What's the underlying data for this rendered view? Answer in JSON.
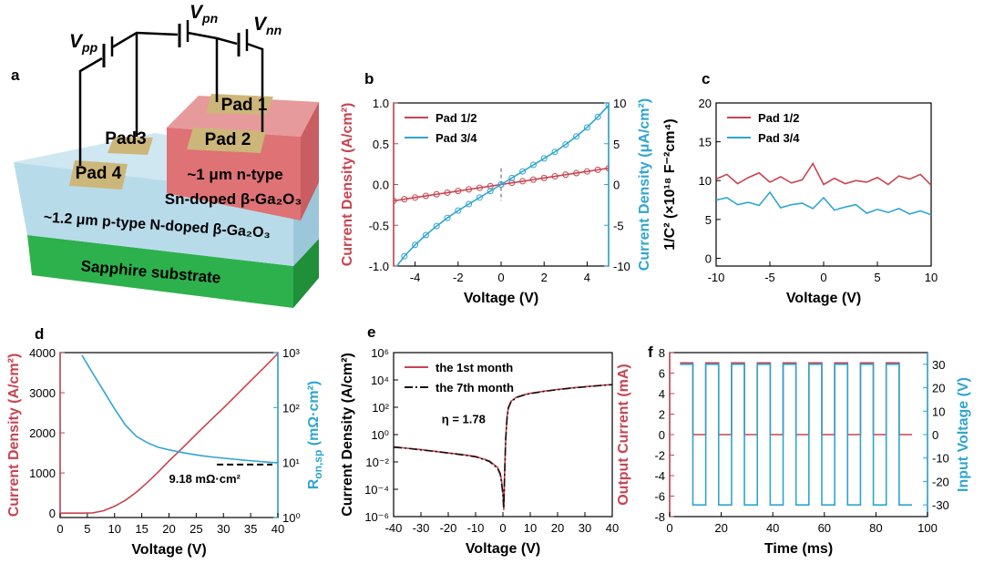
{
  "diagram": {
    "panel_label": "a",
    "vpp": [
      "V",
      "pp"
    ],
    "vpn": [
      "V",
      "pn"
    ],
    "vnn": [
      "V",
      "nn"
    ],
    "pads": [
      "Pad 1",
      "Pad 2",
      "Pad3",
      "Pad 4"
    ],
    "n_layer": [
      "~1 μm n-type",
      "Sn-doped β-Ga₂O₃"
    ],
    "p_layer": "~1.2 μm p-type N-doped β-Ga₂O₃",
    "substrate": "Sapphire substrate"
  },
  "chart_data": [
    {
      "type": "line",
      "panel_label": "b",
      "xlabel": "Voltage (V)",
      "ylabel": "Current Density (A/cm²)",
      "y2label": "Current Density (μA/cm²)",
      "x": [
        -5,
        -4.5,
        -4,
        -3.5,
        -3,
        -2.5,
        -2,
        -1.5,
        -1,
        -0.5,
        0,
        0.5,
        1,
        1.5,
        2,
        2.5,
        3,
        3.5,
        4,
        4.5,
        5
      ],
      "series": [
        {
          "name": "Pad 1/2",
          "color": "#c8434f",
          "marker": "circle",
          "values": [
            -0.2,
            -0.18,
            -0.16,
            -0.14,
            -0.12,
            -0.1,
            -0.08,
            -0.06,
            -0.04,
            -0.02,
            0,
            0.02,
            0.04,
            0.06,
            0.08,
            0.1,
            0.12,
            0.14,
            0.16,
            0.18,
            0.2
          ]
        },
        {
          "name": "Pad 3/4",
          "color": "#2ea5d0",
          "marker": "circle",
          "axis": "y2",
          "values": [
            -10.5,
            -8.8,
            -7.4,
            -6.2,
            -5.1,
            -4.1,
            -3.2,
            -2.4,
            -1.6,
            -0.8,
            0,
            0.8,
            1.6,
            2.4,
            3.2,
            4.0,
            4.9,
            5.9,
            7.0,
            8.3,
            9.7
          ]
        }
      ],
      "xlim": [
        -5,
        5
      ],
      "xticks": [
        -4,
        -2,
        0,
        2,
        4
      ],
      "ylim": [
        -1,
        1
      ],
      "yticks": [
        {
          "value": -1,
          "label": "-1.0"
        },
        -0.5,
        {
          "value": 0,
          "label": "0.0"
        },
        0.5,
        {
          "value": 1,
          "label": "1.0"
        }
      ],
      "y2lim": [
        -10,
        10
      ],
      "y2ticks": [
        -10,
        -5,
        0,
        5,
        10
      ],
      "vline": 0,
      "legend": "upper left"
    },
    {
      "type": "line",
      "panel_label": "c",
      "xlabel": "Voltage (V)",
      "ylabel": "1/C² (×10¹⁸ F⁻²cm⁴)",
      "x": [
        -10,
        -9,
        -8,
        -7,
        -6,
        -5,
        -4,
        -3,
        -2,
        -1,
        0,
        1,
        2,
        3,
        4,
        5,
        6,
        7,
        8,
        9,
        10
      ],
      "series": [
        {
          "name": "Pad 1/2",
          "color": "#c8434f",
          "values": [
            10.2,
            10.8,
            9.6,
            10.4,
            11.0,
            9.8,
            10.5,
            9.7,
            10.1,
            12.2,
            9.5,
            10.3,
            9.6,
            10.0,
            9.8,
            10.4,
            9.5,
            10.6,
            10.2,
            10.8,
            9.4
          ]
        },
        {
          "name": "Pad 3/4",
          "color": "#2ea5d0",
          "values": [
            7.5,
            7.8,
            6.9,
            7.2,
            6.8,
            8.5,
            6.5,
            6.9,
            7.1,
            6.4,
            7.8,
            6.2,
            6.6,
            6.9,
            5.8,
            6.3,
            5.9,
            6.4,
            5.7,
            6.1,
            5.6
          ]
        }
      ],
      "xlim": [
        -10,
        10
      ],
      "xticks": [
        -10,
        -5,
        0,
        5,
        10
      ],
      "ylim": [
        -1,
        20
      ],
      "yticks": [
        0,
        5,
        10,
        15,
        20
      ],
      "legend": "upper left"
    },
    {
      "type": "line",
      "panel_label": "d",
      "xlabel": "Voltage (V)",
      "ylabel": "Current Density (A/cm²)",
      "y2label": [
        "R",
        "on,sp",
        " (mΩ·cm²)"
      ],
      "x": [
        0,
        2,
        4,
        6,
        8,
        10,
        12,
        14,
        16,
        18,
        20,
        22,
        24,
        26,
        28,
        30,
        32,
        34,
        36,
        38,
        40
      ],
      "series": [
        {
          "color": "#c8434f",
          "values": [
            0,
            0,
            0,
            5,
            60,
            170,
            320,
            520,
            760,
            1020,
            1300,
            1560,
            1830,
            2100,
            2360,
            2620,
            2890,
            3160,
            3430,
            3700,
            3980
          ]
        },
        {
          "color": "#2ea5d0",
          "axis": "y2",
          "values": [
            null,
            null,
            900,
            420,
            200,
            95,
            48,
            30,
            23,
            19,
            17,
            15.5,
            14.3,
            13.3,
            12.6,
            12,
            11.5,
            11,
            10.6,
            10.2,
            9.9
          ]
        }
      ],
      "xlim": [
        0,
        40
      ],
      "xticks": [
        0,
        5,
        10,
        15,
        20,
        25,
        30,
        35,
        40
      ],
      "ylim": [
        -110,
        4000
      ],
      "yticks": [
        0,
        1000,
        2000,
        3000,
        4000
      ],
      "y2lim": [
        1,
        1000
      ],
      "y2log": true,
      "y2ticks": [
        {
          "value": 1,
          "label": "10⁰"
        },
        {
          "value": 10,
          "label": "10¹"
        },
        {
          "value": 100,
          "label": "10²"
        },
        {
          "value": 1000,
          "label": "10³"
        }
      ],
      "hline_y2": 9.18,
      "annotation": "9.18 mΩ·cm²"
    },
    {
      "type": "line",
      "panel_label": "e",
      "xlabel": "Voltage (V)",
      "ylabel": "Current Density (A/cm²)",
      "x": [
        -40,
        -35,
        -30,
        -25,
        -20,
        -15,
        -10,
        -5,
        -2,
        -1,
        -0.5,
        0,
        0.3,
        0.6,
        1,
        1.5,
        2,
        3,
        5,
        8,
        10,
        15,
        20,
        25,
        30,
        35,
        40
      ],
      "series": [
        {
          "name": "the 1st month",
          "color": "#c8434f",
          "values": [
            0.13,
            0.1,
            0.08,
            0.06,
            0.045,
            0.035,
            0.025,
            0.012,
            0.004,
            0.0015,
            0.0004,
            5e-05,
            3e-06,
            0.001,
            0.5,
            20,
            100,
            280,
            550,
            850,
            1050,
            1500,
            2000,
            2600,
            3200,
            3900,
            4600
          ]
        },
        {
          "name": "the 7th month",
          "color": "#111111",
          "dash": "dashdot",
          "values": [
            0.12,
            0.1,
            0.075,
            0.06,
            0.045,
            0.033,
            0.024,
            0.011,
            0.0035,
            0.0013,
            0.0003,
            4e-05,
            4e-06,
            0.0008,
            0.4,
            15,
            90,
            260,
            520,
            820,
            1000,
            1450,
            1950,
            2500,
            3100,
            3800,
            4500
          ]
        }
      ],
      "xlim": [
        -40,
        40
      ],
      "xticks": [
        -40,
        -30,
        -20,
        -10,
        0,
        10,
        20,
        30,
        40
      ],
      "ylim": [
        1e-06,
        1000000
      ],
      "ylog": true,
      "yticks": [
        {
          "value": 1e-06,
          "label": "10⁻⁶"
        },
        {
          "value": 0.0001,
          "label": "10⁻⁴"
        },
        {
          "value": 0.01,
          "label": "10⁻²"
        },
        {
          "value": 1,
          "label": "10⁰"
        },
        {
          "value": 100,
          "label": "10²"
        },
        {
          "value": 10000,
          "label": "10⁴"
        },
        {
          "value": 1000000,
          "label": "10⁶"
        }
      ],
      "annotation": "η = 1.78",
      "legend": "upper left"
    },
    {
      "type": "line",
      "panel_label": "f",
      "xlabel": "Time (ms)",
      "ylabel": "Output Current (mA)",
      "y2label": "Input Voltage (V)",
      "x": [
        4,
        9,
        9,
        14,
        14,
        19,
        19,
        24,
        24,
        29,
        29,
        34,
        34,
        39,
        39,
        44,
        44,
        49,
        49,
        54,
        54,
        59,
        59,
        64,
        64,
        69,
        69,
        74,
        74,
        79,
        79,
        84,
        84,
        89,
        89,
        94
      ],
      "series": [
        {
          "color": "#c8434f",
          "values": [
            7,
            7,
            0,
            0,
            7,
            7,
            0,
            0,
            7,
            7,
            0,
            0,
            7,
            7,
            0,
            0,
            7,
            7,
            0,
            0,
            7,
            7,
            0,
            0,
            7,
            7,
            0,
            0,
            7,
            7,
            0,
            0,
            7,
            7,
            0,
            0
          ]
        },
        {
          "color": "#2ea5d0",
          "axis": "y2",
          "values": [
            30,
            30,
            -30,
            -30,
            30,
            30,
            -30,
            -30,
            30,
            30,
            -30,
            -30,
            30,
            30,
            -30,
            -30,
            30,
            30,
            -30,
            -30,
            30,
            30,
            -30,
            -30,
            30,
            30,
            -30,
            -30,
            30,
            30,
            -30,
            -30,
            30,
            30,
            -30,
            -30
          ]
        }
      ],
      "xlim": [
        0,
        100
      ],
      "xticks": [
        0,
        20,
        40,
        60,
        80,
        100
      ],
      "ylim": [
        -8,
        8
      ],
      "yticks": [
        -8,
        -6,
        -4,
        -2,
        0,
        2,
        4,
        6,
        8
      ],
      "y2lim": [
        -35,
        35
      ],
      "y2ticks": [
        -30,
        -20,
        -10,
        0,
        10,
        20,
        30
      ]
    }
  ]
}
